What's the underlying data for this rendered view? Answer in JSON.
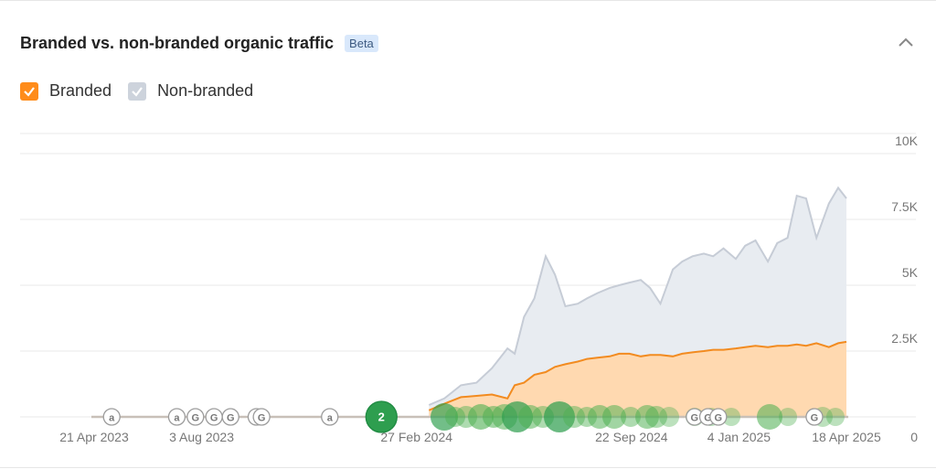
{
  "header": {
    "title": "Branded vs. non-branded organic traffic",
    "badge": "Beta",
    "collapse_icon": "chevron-up-icon"
  },
  "legend": {
    "items": [
      {
        "label": "Branded",
        "checked": true,
        "color": "#ff8c1a"
      },
      {
        "label": "Non-branded",
        "checked": true,
        "color": "#cdd3dc"
      }
    ]
  },
  "colors": {
    "branded_line": "#f28b20",
    "branded_fill": "#ffd9b0",
    "nonbranded_line": "#c6ccd6",
    "nonbranded_fill": "#e8ecf1",
    "grid": "#e9e9e9",
    "timeline": "#c8c0b8",
    "event_green": "#4caf50",
    "event_dark_green": "#2e9e4f"
  },
  "chart_data": {
    "type": "area",
    "x_axis_ticks": [
      "21 Apr 2023",
      "3 Aug 2023",
      "27 Feb 2024",
      "22 Sep 2024",
      "4 Jan 2025",
      "18 Apr 2025"
    ],
    "y_axis_ticks": [
      "10K",
      "7.5K",
      "5K",
      "2.5K",
      "0"
    ],
    "ylim": [
      0,
      10000
    ],
    "grid": true,
    "x": [
      "2024-03-10",
      "2024-03-25",
      "2024-04-10",
      "2024-04-25",
      "2024-05-10",
      "2024-05-25",
      "2024-06-01",
      "2024-06-10",
      "2024-06-20",
      "2024-07-01",
      "2024-07-10",
      "2024-07-20",
      "2024-08-01",
      "2024-08-10",
      "2024-08-20",
      "2024-09-01",
      "2024-09-10",
      "2024-09-20",
      "2024-10-01",
      "2024-10-10",
      "2024-10-20",
      "2024-11-01",
      "2024-11-10",
      "2024-11-20",
      "2024-12-01",
      "2024-12-10",
      "2024-12-20",
      "2025-01-01",
      "2025-01-10",
      "2025-01-20",
      "2025-02-01",
      "2025-02-10",
      "2025-02-20",
      "2025-03-01",
      "2025-03-10",
      "2025-03-20",
      "2025-04-01",
      "2025-04-10",
      "2025-04-18"
    ],
    "series": [
      {
        "name": "Branded",
        "values": [
          250,
          500,
          750,
          800,
          850,
          700,
          1200,
          1300,
          1600,
          1700,
          1900,
          2000,
          2100,
          2200,
          2250,
          2300,
          2400,
          2400,
          2300,
          2350,
          2350,
          2300,
          2400,
          2450,
          2500,
          2550,
          2550,
          2600,
          2650,
          2700,
          2650,
          2700,
          2700,
          2750,
          2700,
          2800,
          2650,
          2800,
          2850
        ]
      },
      {
        "name": "Non-branded",
        "values": [
          450,
          700,
          1200,
          1300,
          1850,
          2600,
          2400,
          3800,
          4500,
          6100,
          5400,
          4200,
          4300,
          4500,
          4700,
          4900,
          5000,
          5100,
          5200,
          4900,
          4300,
          5600,
          5900,
          6100,
          6200,
          6100,
          6400,
          6000,
          6500,
          6700,
          5900,
          6600,
          6800,
          8400,
          8300,
          6800,
          8100,
          8700,
          8300
        ]
      }
    ],
    "event_markers": [
      {
        "label": "a",
        "date": "2023-05-08"
      },
      {
        "label": "a",
        "date": "2023-07-10"
      },
      {
        "label": "G",
        "date": "2023-07-28"
      },
      {
        "label": "G",
        "date": "2023-08-15"
      },
      {
        "label": "G",
        "date": "2023-08-31"
      },
      {
        "label": "G",
        "date": "2023-09-25"
      },
      {
        "label": "G",
        "date": "2023-09-30"
      },
      {
        "label": "a",
        "date": "2023-12-05"
      },
      {
        "label": "2",
        "date": "2024-01-24"
      },
      {
        "label": "G",
        "date": "2024-11-22"
      },
      {
        "label": "G",
        "date": "2024-12-05"
      },
      {
        "label": "G",
        "date": "2024-12-15"
      },
      {
        "label": "G",
        "date": "2025-03-18"
      }
    ]
  }
}
